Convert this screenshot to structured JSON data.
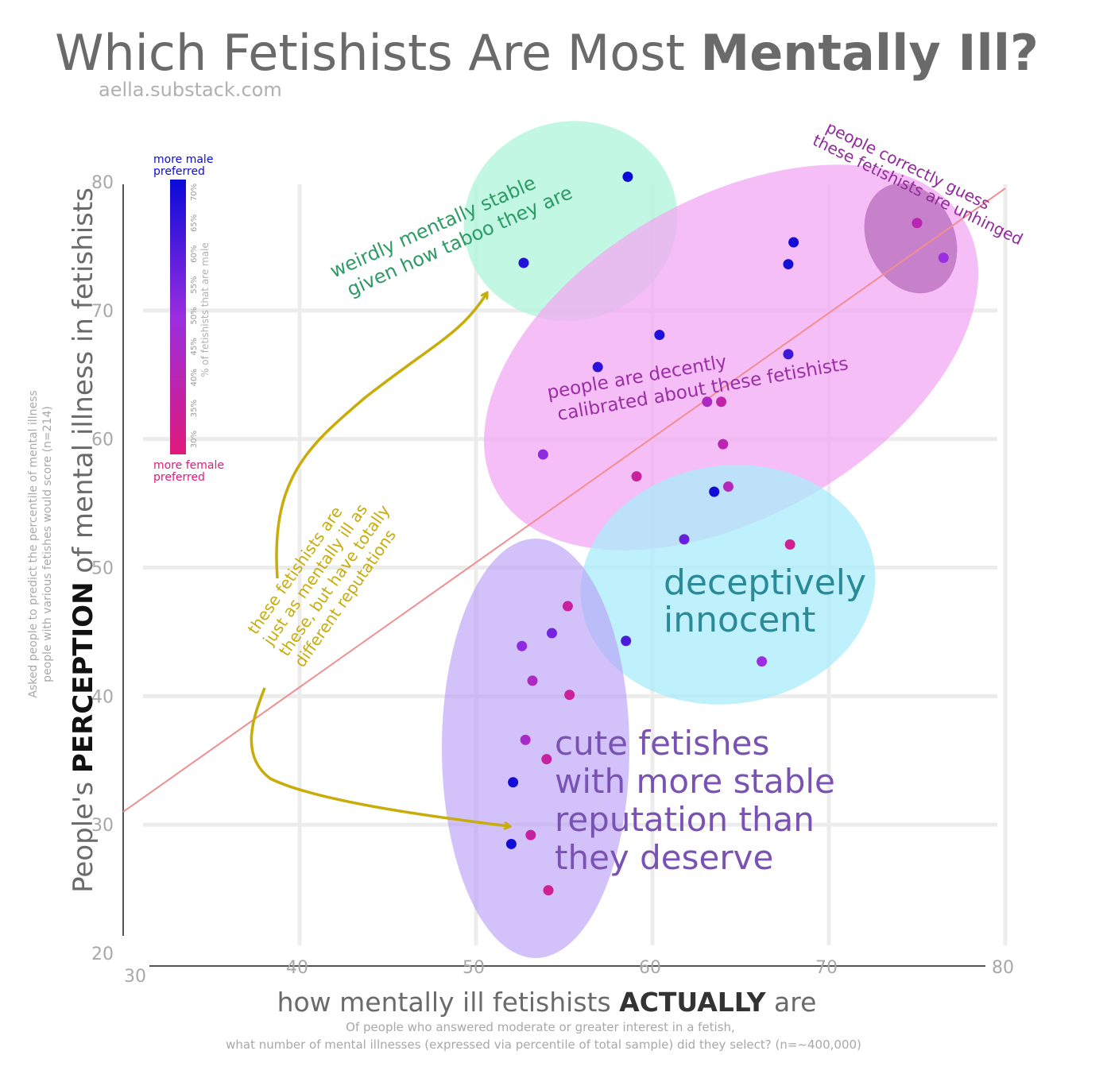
{
  "title": {
    "regular": "Which Fetishists Are Most ",
    "bold": "Mentally Ill?"
  },
  "source": "aella.substack.com",
  "colors": {
    "male": "#0a0ad8",
    "mid": "#9a2ee0",
    "female": "#e01a7a",
    "trend": "#ef8f92",
    "arrow": "#c8ac0a",
    "grid": "#ececec",
    "axis_text": "#a8a8a8"
  },
  "chart_data": {
    "type": "scatter",
    "title": "Which Fetishists Are Most Mentally Ill?",
    "xlabel": {
      "prefix": "how mentally ill fetishists ",
      "bold": "ACTUALLY",
      "suffix": " are",
      "note_line1": "Of people who answered moderate or greater interest in a fetish,",
      "note_line2": "what number of mental illnesses (expressed via percentile of total sample) did they select? (n=~400,000)"
    },
    "ylabel": {
      "prefix": "People's ",
      "bold": "PERCEPTION",
      "suffix": " of mental illness in fetishists",
      "note_line1": "Asked people to predict the percentile of mental illness",
      "note_line2": "people with various fetishes would score (n=214)"
    },
    "xlim": [
      30,
      80
    ],
    "ylim": [
      20,
      82
    ],
    "x_ticks": [
      "30",
      "40",
      "50",
      "60",
      "70",
      "80"
    ],
    "y_ticks": [
      "20",
      "30",
      "40",
      "50",
      "60",
      "70",
      "80"
    ],
    "trend_line": {
      "x": [
        30,
        80
      ],
      "y": [
        31,
        79.5
      ]
    },
    "color_scale": {
      "label": "% of fetishists that are male",
      "top_label_1": "more male",
      "top_label_2": "preferred",
      "bottom_label_1": "more female",
      "bottom_label_2": "preferred",
      "ticks": [
        "30%",
        "35%",
        "40%",
        "45%",
        "50%",
        "55%",
        "60%",
        "65%",
        "70%"
      ]
    },
    "points": [
      {
        "x": 58.6,
        "y": 80.4,
        "male_pct": 72
      },
      {
        "x": 52.7,
        "y": 73.7,
        "male_pct": 68
      },
      {
        "x": 68.0,
        "y": 75.3,
        "male_pct": 71
      },
      {
        "x": 67.7,
        "y": 73.6,
        "male_pct": 70
      },
      {
        "x": 60.4,
        "y": 68.1,
        "male_pct": 69
      },
      {
        "x": 67.7,
        "y": 66.6,
        "male_pct": 64
      },
      {
        "x": 56.9,
        "y": 65.6,
        "male_pct": 67
      },
      {
        "x": 75.0,
        "y": 76.8,
        "male_pct": 40
      },
      {
        "x": 76.5,
        "y": 74.1,
        "male_pct": 50
      },
      {
        "x": 63.1,
        "y": 62.9,
        "male_pct": 44
      },
      {
        "x": 63.9,
        "y": 62.9,
        "male_pct": 38
      },
      {
        "x": 64.0,
        "y": 59.6,
        "male_pct": 40
      },
      {
        "x": 53.8,
        "y": 58.8,
        "male_pct": 52
      },
      {
        "x": 59.1,
        "y": 57.1,
        "male_pct": 36
      },
      {
        "x": 64.3,
        "y": 56.3,
        "male_pct": 42
      },
      {
        "x": 63.5,
        "y": 55.9,
        "male_pct": 71
      },
      {
        "x": 61.8,
        "y": 52.2,
        "male_pct": 58
      },
      {
        "x": 67.8,
        "y": 51.8,
        "male_pct": 33
      },
      {
        "x": 55.2,
        "y": 47.0,
        "male_pct": 36
      },
      {
        "x": 54.3,
        "y": 44.9,
        "male_pct": 56
      },
      {
        "x": 52.6,
        "y": 43.9,
        "male_pct": 52
      },
      {
        "x": 58.5,
        "y": 44.3,
        "male_pct": 62
      },
      {
        "x": 66.2,
        "y": 42.7,
        "male_pct": 50
      },
      {
        "x": 53.2,
        "y": 41.2,
        "male_pct": 44
      },
      {
        "x": 55.3,
        "y": 40.1,
        "male_pct": 35
      },
      {
        "x": 52.8,
        "y": 36.6,
        "male_pct": 45
      },
      {
        "x": 54.0,
        "y": 35.1,
        "male_pct": 36
      },
      {
        "x": 52.1,
        "y": 33.3,
        "male_pct": 71
      },
      {
        "x": 53.1,
        "y": 29.2,
        "male_pct": 36
      },
      {
        "x": 52.0,
        "y": 28.5,
        "male_pct": 71
      },
      {
        "x": 54.1,
        "y": 24.9,
        "male_pct": 33
      }
    ],
    "annotations": {
      "weird": [
        "weirdly mentally stable",
        "given how taboo they are"
      ],
      "unhinged": [
        "people correctly guess",
        "these fetishists are unhinged"
      ],
      "calibrated": [
        "people are decently",
        "calibrated about these fetishists"
      ],
      "innocent": [
        "deceptively",
        "innocent"
      ],
      "cute": [
        "cute fetishes",
        "with more stable",
        "reputation than",
        "they deserve"
      ],
      "reputations": [
        "these fetishists are",
        "just as mentally ill as",
        "these, but have totally",
        "different reputations"
      ]
    }
  }
}
